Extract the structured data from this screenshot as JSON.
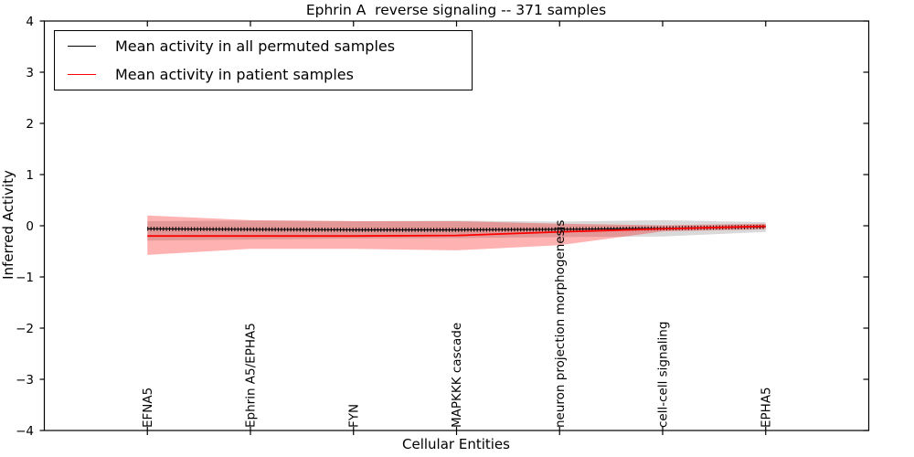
{
  "figure": {
    "title": "Ephrin A  reverse signaling -- 371 samples",
    "xlabel": "Cellular Entities",
    "ylabel": "Inferred Activity"
  },
  "legend": {
    "items": [
      {
        "label": "Mean activity in all permuted samples",
        "color": "#000000"
      },
      {
        "label": "Mean activity in patient samples",
        "color": "#ff0000"
      }
    ],
    "position": "upper left"
  },
  "chart_data": {
    "type": "line",
    "title": "Ephrin A  reverse signaling -- 371 samples",
    "xlabel": "Cellular Entities",
    "ylabel": "Inferred Activity",
    "xlim": [
      0,
      8
    ],
    "ylim": [
      -4,
      4
    ],
    "yticks": [
      4,
      3,
      2,
      1,
      0,
      -1,
      -2,
      -3,
      -4
    ],
    "x": [
      1,
      2,
      3,
      4,
      5,
      6,
      7
    ],
    "categories": [
      "EFNA5",
      "Ephrin A5/EPHA5",
      "FYN",
      "MAPKKK cascade",
      "neuron projection morphogenesis",
      "cell-cell signaling",
      "EPHA5"
    ],
    "grid": false,
    "legend_position": "upper left",
    "series": [
      {
        "name": "Mean activity in all permuted samples",
        "color": "#000000",
        "band_color": "rgba(128,128,128,0.30)",
        "values": [
          -0.06,
          -0.07,
          -0.08,
          -0.08,
          -0.07,
          -0.05,
          -0.02
        ],
        "band_top": [
          0.09,
          0.1,
          0.09,
          0.1,
          0.08,
          0.11,
          0.07
        ],
        "band_bottom": [
          -0.29,
          -0.27,
          -0.25,
          -0.24,
          -0.22,
          -0.21,
          -0.12
        ]
      },
      {
        "name": "Mean activity in patient samples",
        "color": "#ff0000",
        "band_color": "rgba(255,0,0,0.30)",
        "values": [
          -0.2,
          -0.2,
          -0.2,
          -0.19,
          -0.12,
          -0.06,
          -0.01
        ],
        "band_top": [
          0.2,
          0.11,
          0.09,
          0.09,
          0.04,
          0.01,
          0.04
        ],
        "band_bottom": [
          -0.57,
          -0.45,
          -0.45,
          -0.48,
          -0.38,
          -0.11,
          -0.07
        ]
      }
    ]
  }
}
